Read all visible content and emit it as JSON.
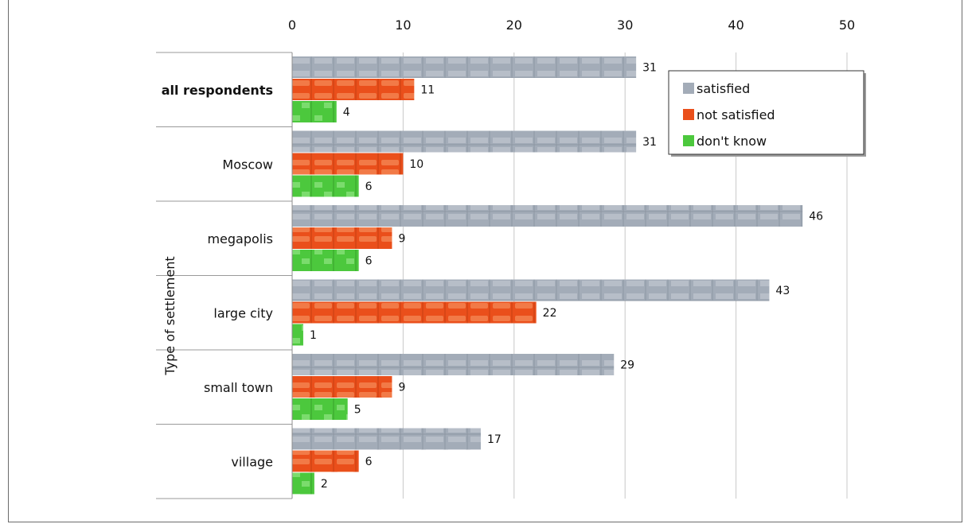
{
  "chart_data": {
    "type": "bar",
    "orientation": "horizontal",
    "ylabel": "Type of settlement",
    "xlim": [
      0,
      50
    ],
    "xticks": [
      0,
      10,
      20,
      30,
      40,
      50
    ],
    "x_axis_position": "top",
    "grid": true,
    "legend_position": "top-right",
    "categories": [
      "all respondents",
      "Moscow",
      "megapolis",
      "large city",
      "small town",
      "village"
    ],
    "bold_categories": [
      "all respondents"
    ],
    "series": [
      {
        "name": "satisfied",
        "color": "#a3acb8",
        "values": [
          31,
          31,
          46,
          43,
          29,
          17
        ]
      },
      {
        "name": "not satisfied",
        "color": "#ea4f1b",
        "values": [
          11,
          10,
          9,
          22,
          9,
          6
        ]
      },
      {
        "name": "don't know",
        "color": "#4cc83d",
        "values": [
          4,
          6,
          6,
          1,
          5,
          2
        ]
      }
    ]
  }
}
